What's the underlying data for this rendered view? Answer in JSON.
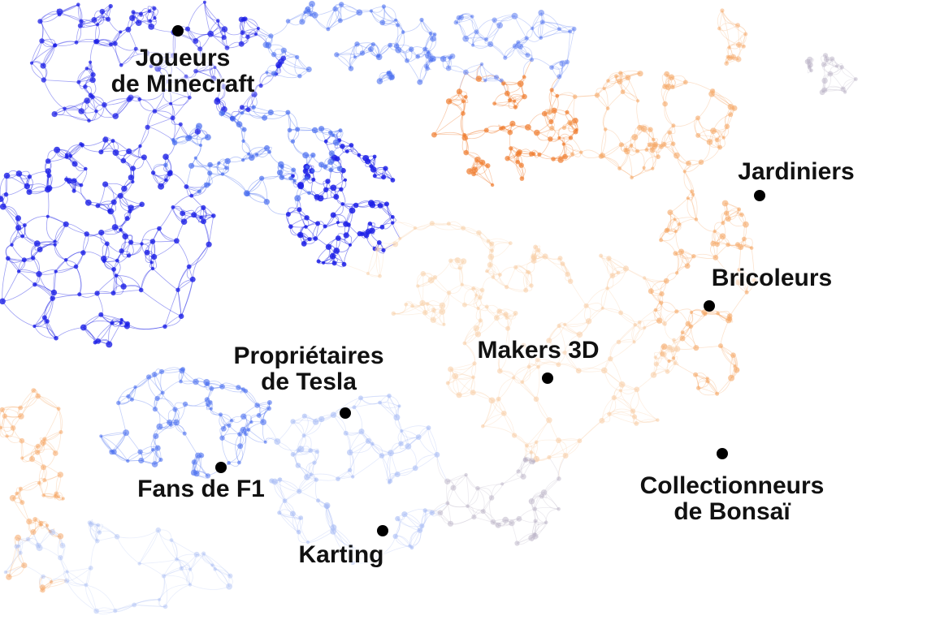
{
  "colors": {
    "blue_strong": "#1c1fe6",
    "blue_mid": "#4b6ff0",
    "blue_light": "#a9bdf5",
    "orange_strong": "#f07c2e",
    "orange_mid": "#f5a868",
    "orange_light": "#f8cfa8",
    "grey": "#b9b2c6",
    "marker": "#000000",
    "label_text": "#111111"
  },
  "communities": [
    {
      "id": "minecraft",
      "lines": [
        "Joueurs",
        "de Minecraft"
      ]
    },
    {
      "id": "tesla",
      "lines": [
        "Propriétaires",
        "de Tesla"
      ]
    },
    {
      "id": "f1",
      "lines": [
        "Fans de F1"
      ]
    },
    {
      "id": "karting",
      "lines": [
        "Karting"
      ]
    },
    {
      "id": "makers3d",
      "lines": [
        "Makers 3D"
      ]
    },
    {
      "id": "jardiniers",
      "lines": [
        "Jardiniers"
      ]
    },
    {
      "id": "bricoleurs",
      "lines": [
        "Bricoleurs"
      ]
    },
    {
      "id": "bonsai",
      "lines": [
        "Collectionneurs",
        "de Bonsaï"
      ]
    }
  ]
}
